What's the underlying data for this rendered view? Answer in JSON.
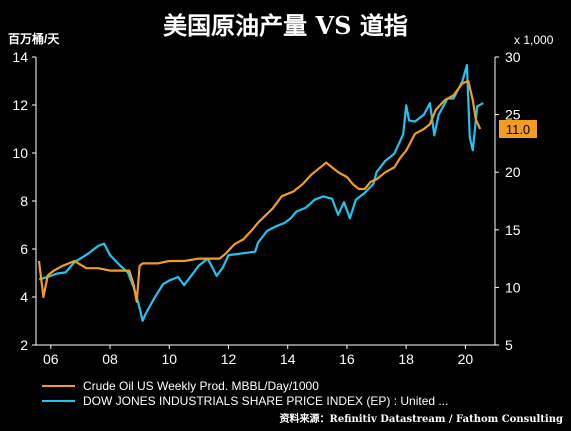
{
  "chart_data": {
    "type": "line",
    "title": "美国原油产量 VS 道指",
    "ylabel_left": "百万桶/天",
    "ylabel_right": "x 1,000",
    "x_ticks": [
      "06",
      "08",
      "10",
      "12",
      "14",
      "16",
      "18",
      "20"
    ],
    "x_range": [
      2005.5,
      2021.0
    ],
    "y_left_range": [
      2,
      14
    ],
    "y_left_ticks": [
      2,
      4,
      6,
      8,
      10,
      12,
      14
    ],
    "y_right_range": [
      5,
      30
    ],
    "y_right_ticks": [
      5,
      10,
      15,
      20,
      25,
      30
    ],
    "grid": false,
    "legend_position": "bottom",
    "colors": {
      "crude": "#f39c1f",
      "dow": "#1fc4f0"
    },
    "current_value_label": "11.0",
    "series": [
      {
        "name": "Crude Oil US Weekly Prod. MBBL/Day/1000",
        "axis": "left",
        "x": [
          2005.6,
          2005.75,
          2005.9,
          2006.1,
          2006.4,
          2006.8,
          2007.2,
          2007.6,
          2008.0,
          2008.4,
          2008.65,
          2008.8,
          2008.9,
          2009.0,
          2009.1,
          2009.3,
          2009.6,
          2010.0,
          2010.5,
          2011.0,
          2011.5,
          2011.7,
          2011.9,
          2012.2,
          2012.5,
          2012.8,
          2013.0,
          2013.5,
          2013.8,
          2014.0,
          2014.2,
          2014.5,
          2014.8,
          2015.0,
          2015.3,
          2015.5,
          2015.7,
          2016.0,
          2016.2,
          2016.4,
          2016.6,
          2016.8,
          2017.0,
          2017.3,
          2017.6,
          2017.8,
          2018.0,
          2018.3,
          2018.6,
          2018.8,
          2019.0,
          2019.3,
          2019.6,
          2019.9,
          2020.1,
          2020.25,
          2020.35,
          2020.5
        ],
        "values": [
          5.5,
          4.0,
          4.9,
          5.1,
          5.3,
          5.5,
          5.2,
          5.2,
          5.1,
          5.1,
          5.1,
          4.5,
          3.8,
          5.3,
          5.4,
          5.4,
          5.4,
          5.5,
          5.5,
          5.6,
          5.6,
          5.6,
          5.8,
          6.2,
          6.4,
          6.8,
          7.1,
          7.7,
          8.2,
          8.3,
          8.4,
          8.7,
          9.1,
          9.3,
          9.6,
          9.4,
          9.2,
          9.0,
          8.7,
          8.5,
          8.5,
          8.8,
          8.9,
          9.2,
          9.4,
          9.8,
          10.1,
          10.8,
          11.0,
          11.2,
          11.8,
          12.2,
          12.4,
          12.9,
          13.0,
          12.2,
          11.4,
          11.0
        ]
      },
      {
        "name": "DOW JONES INDUSTRIALS SHARE PRICE INDEX (EP) : United ...",
        "axis": "right",
        "x": [
          2005.6,
          2005.9,
          2006.2,
          2006.5,
          2006.8,
          2007.0,
          2007.3,
          2007.6,
          2007.8,
          2008.0,
          2008.3,
          2008.6,
          2008.8,
          2008.95,
          2009.1,
          2009.2,
          2009.5,
          2009.8,
          2010.0,
          2010.3,
          2010.5,
          2010.8,
          2011.0,
          2011.3,
          2011.6,
          2011.8,
          2012.0,
          2012.3,
          2012.6,
          2012.9,
          2013.0,
          2013.3,
          2013.6,
          2013.9,
          2014.1,
          2014.3,
          2014.6,
          2014.9,
          2015.2,
          2015.5,
          2015.7,
          2015.9,
          2016.1,
          2016.3,
          2016.6,
          2016.9,
          2017.0,
          2017.3,
          2017.6,
          2017.9,
          2018.0,
          2018.1,
          2018.3,
          2018.6,
          2018.8,
          2018.95,
          2019.1,
          2019.4,
          2019.6,
          2019.9,
          2020.05,
          2020.15,
          2020.25,
          2020.4,
          2020.6
        ],
        "values": [
          10.7,
          10.9,
          11.2,
          11.3,
          12.2,
          12.5,
          13.0,
          13.6,
          13.8,
          12.8,
          12.0,
          11.3,
          10.0,
          8.7,
          7.1,
          7.7,
          9.1,
          10.3,
          10.6,
          10.9,
          10.2,
          11.2,
          11.9,
          12.5,
          11.0,
          11.7,
          12.8,
          12.9,
          13.0,
          13.1,
          13.9,
          14.9,
          15.3,
          15.6,
          16.0,
          16.6,
          16.9,
          17.6,
          17.9,
          17.7,
          16.3,
          17.4,
          16.0,
          17.6,
          18.2,
          19.0,
          20.0,
          21.0,
          21.6,
          23.3,
          25.8,
          24.5,
          24.4,
          25.0,
          26.0,
          23.2,
          25.0,
          26.4,
          26.4,
          27.9,
          29.3,
          23.0,
          21.9,
          25.7,
          26.0
        ]
      }
    ]
  },
  "legend": {
    "crude_label": "Crude Oil US Weekly Prod. MBBL/Day/1000",
    "dow_label": "DOW JONES INDUSTRIALS SHARE PRICE INDEX (EP) : United ..."
  },
  "source": "资料来源：Refinitiv Datastream / Fathom Consulting"
}
